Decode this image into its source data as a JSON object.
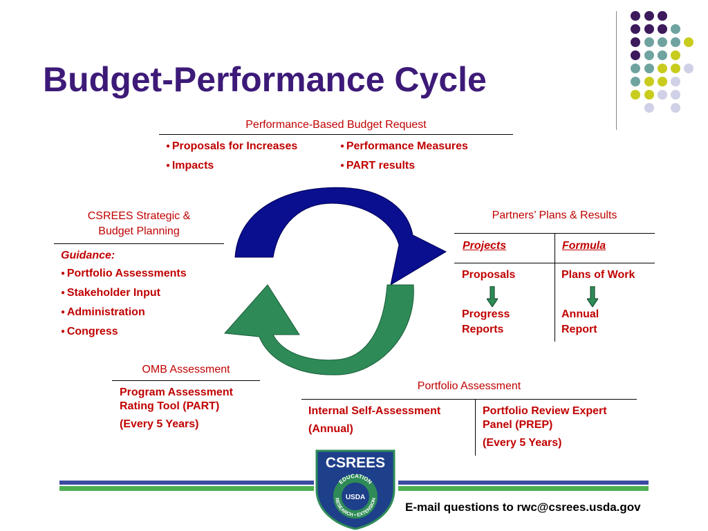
{
  "title": "Budget-Performance Cycle",
  "top": {
    "header": "Performance-Based Budget Request",
    "items_left": [
      "Proposals for Increases",
      "Impacts"
    ],
    "items_right": [
      "Performance Measures",
      "PART results"
    ]
  },
  "left": {
    "header_line1": "CSREES Strategic &",
    "header_line2": "Budget Planning",
    "guidance_label": "Guidance:",
    "items": [
      "Portfolio Assessments",
      "Stakeholder Input",
      "Administration",
      "Congress"
    ]
  },
  "right": {
    "header": "Partners’ Plans & Results",
    "col1_head": "Projects",
    "col2_head": "Formula",
    "col1_top": "Proposals",
    "col2_top": "Plans of Work",
    "col1_bottom_line1": "Progress",
    "col1_bottom_line2": "Reports",
    "col2_bottom_line1": "Annual",
    "col2_bottom_line2": "Report"
  },
  "omb": {
    "header": "OMB Assessment",
    "line1": "Program Assessment",
    "line2": "Rating Tool (PART)",
    "line3": "(Every 5 Years)"
  },
  "portfolio": {
    "header": "Portfolio Assessment",
    "left_line1": "Internal Self-Assessment",
    "left_line2": "(Annual)",
    "right_line1": "Portfolio Review Expert",
    "right_line2": "Panel (PREP)",
    "right_line3": "(Every 5 Years)"
  },
  "logo": {
    "name": "CSREES",
    "ring_top": "EDUCATION",
    "center": "USDA",
    "ring_bottom": "RESEARCH • EXTENSION"
  },
  "footer": {
    "email_text": "E-mail questions to rwc@csrees.usda.gov"
  },
  "colors": {
    "title": "#3d1a78",
    "accent_red": "#c00000",
    "arrow_blue": "#0a0f8f",
    "arrow_green": "#2e8b57",
    "band_blue": "#3b4aa0",
    "band_green": "#4caf50",
    "dot_purple": "#3d1a5c",
    "dot_teal": "#6fa3a0",
    "dot_yellow": "#c8cc1e",
    "dot_lavender": "#d0d0e6"
  }
}
